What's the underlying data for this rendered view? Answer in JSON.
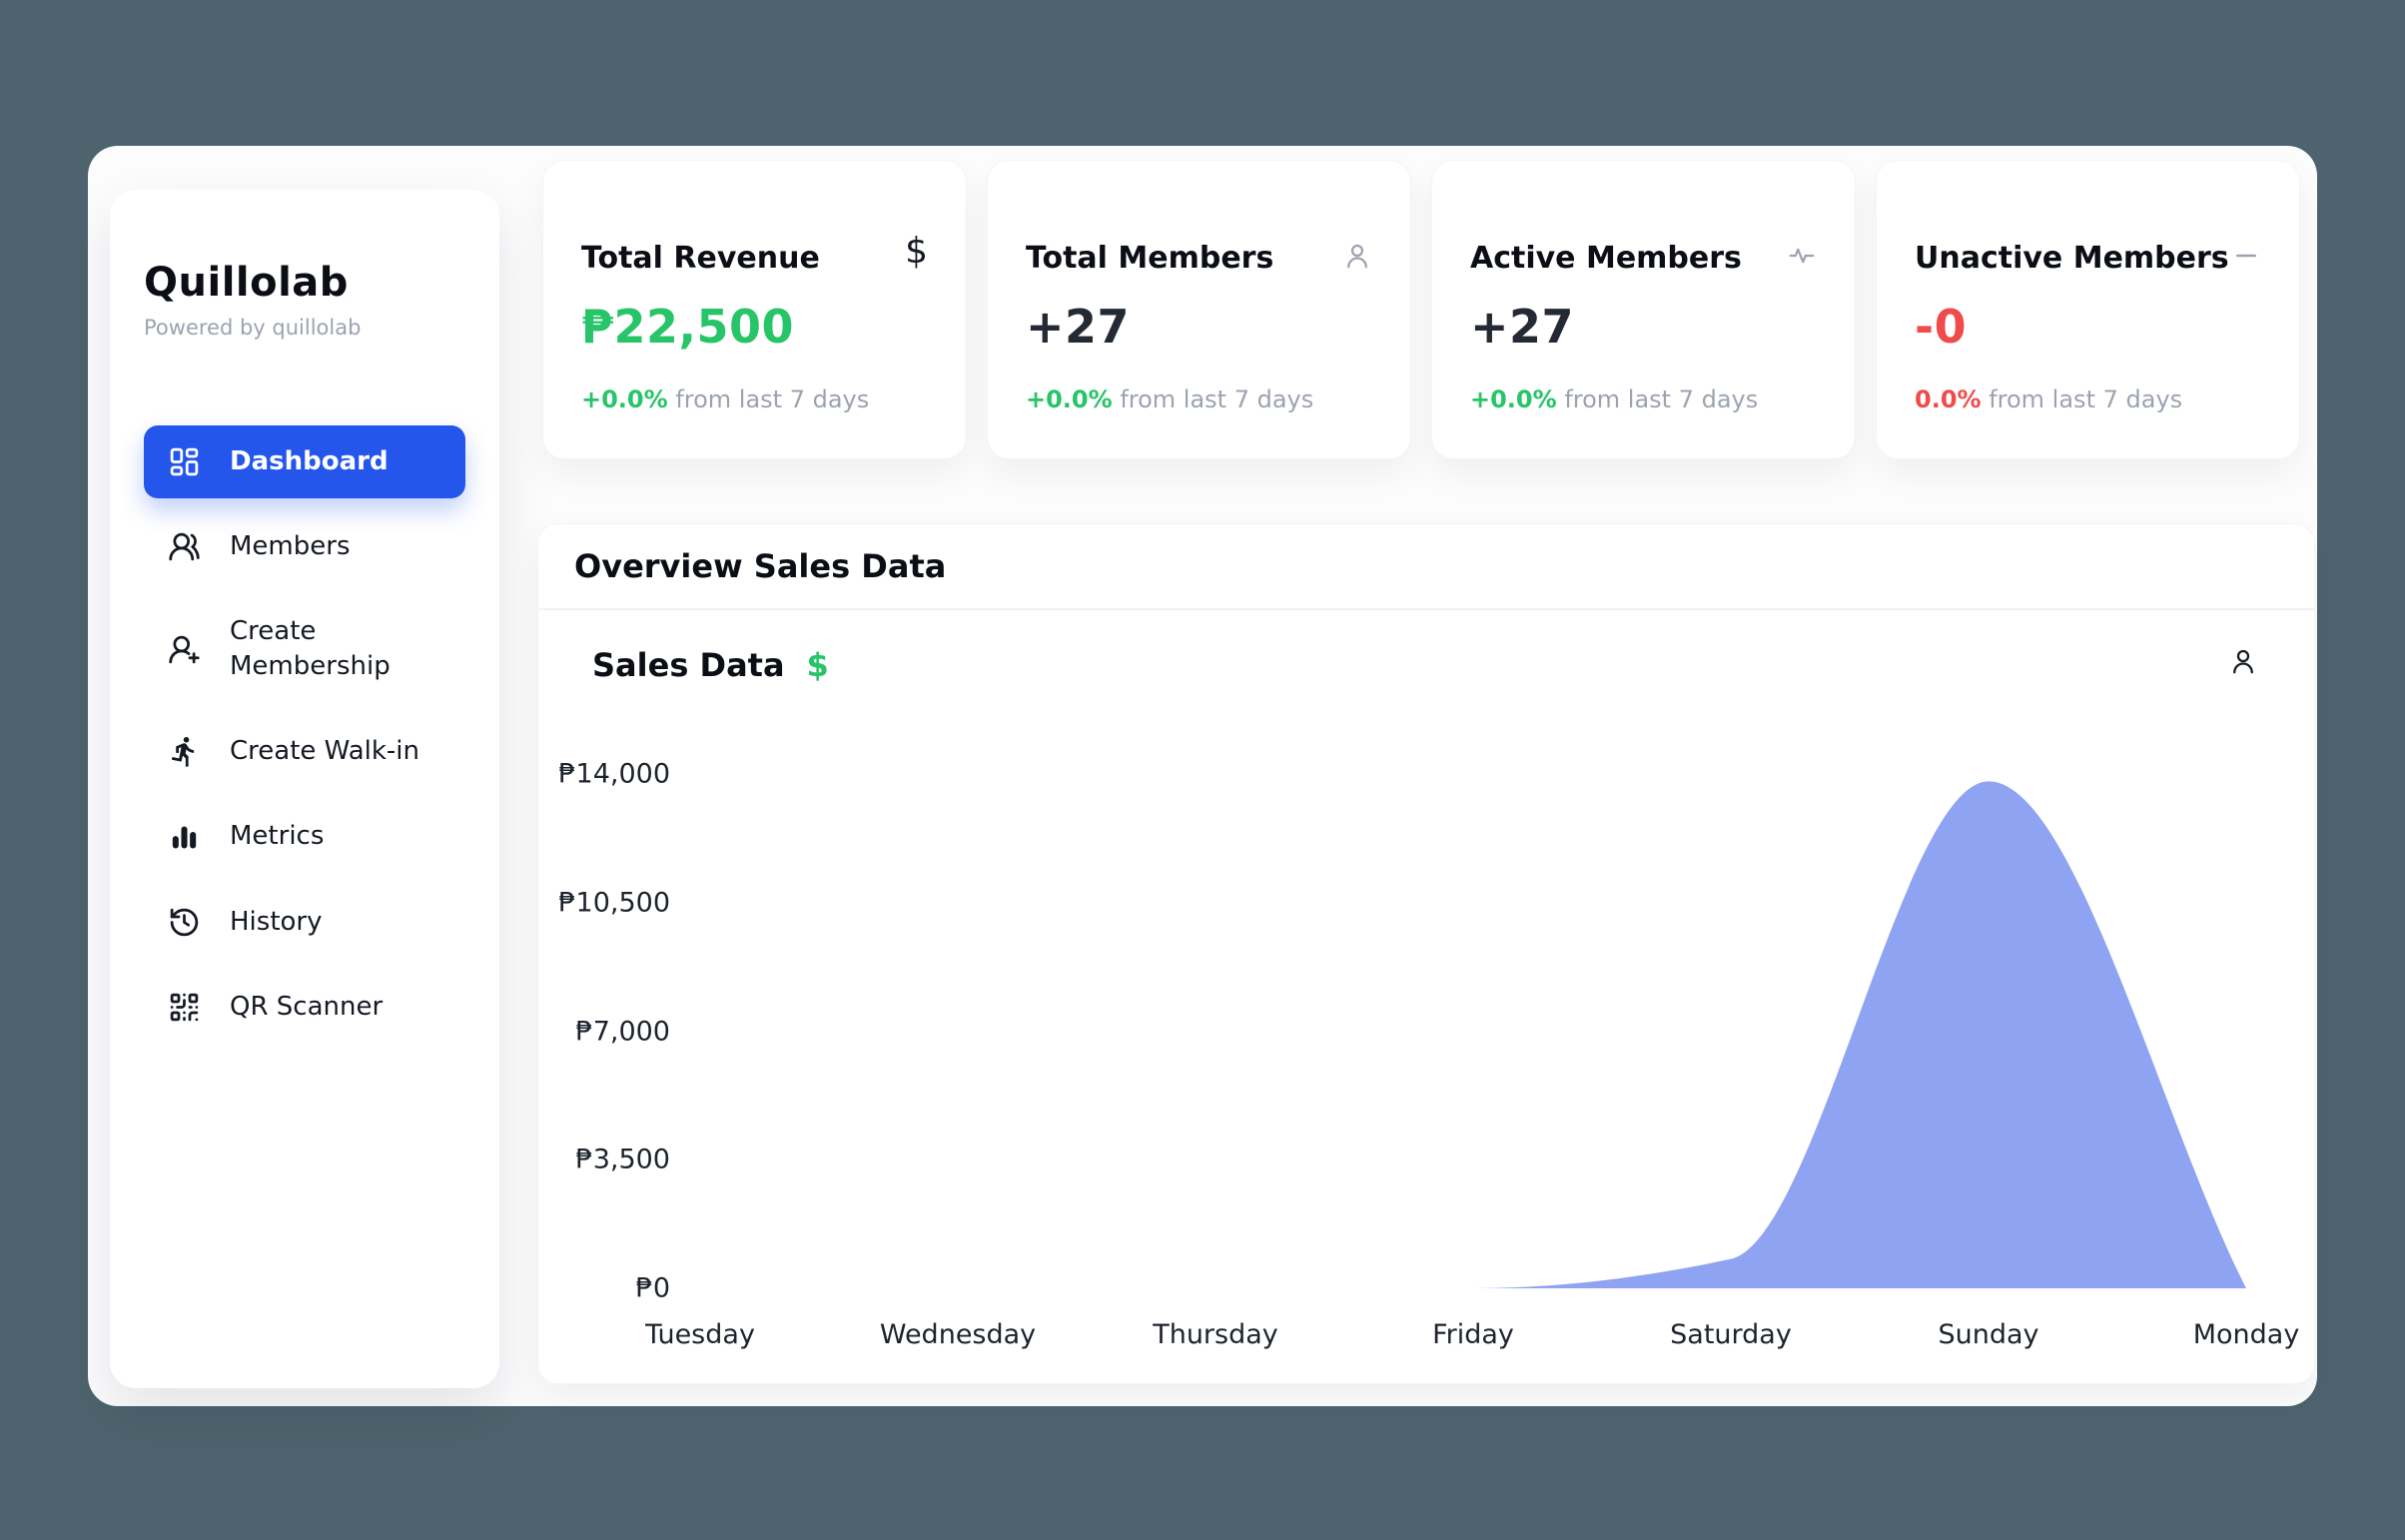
{
  "theme": {
    "background": "#4D636D",
    "surface": "#FFFFFF",
    "accent_blue": "#2456EC",
    "green": "#27C468",
    "red": "#EF4B4B",
    "gray_text": "#9CA3AF",
    "dark_text": "#0B0E14",
    "area_blue": "#8EA3F1"
  },
  "sidebar": {
    "title": "Quillolab",
    "subtitle": "Powered by quillolab",
    "items": [
      {
        "label": "Dashboard",
        "icon": "dashboard-grid",
        "active": true
      },
      {
        "label": "Members",
        "icon": "members",
        "active": false
      },
      {
        "label": "Create Membership",
        "icon": "person-add",
        "active": false
      },
      {
        "label": "Create Walk-in",
        "icon": "walk-in-runner",
        "active": false
      },
      {
        "label": "Metrics",
        "icon": "bar-chart",
        "active": false
      },
      {
        "label": "History",
        "icon": "history-clock",
        "active": false
      },
      {
        "label": "QR Scanner",
        "icon": "qr-code",
        "active": false
      }
    ]
  },
  "stats": [
    {
      "title": "Total Revenue",
      "icon": "dollar",
      "icon_glyph": "$",
      "value": "₱22,500",
      "value_color": "#27C468",
      "delta": "+0.0%",
      "delta_color": "#27C468",
      "caption": "from last 7 days"
    },
    {
      "title": "Total Members",
      "icon": "person",
      "value": "+27",
      "value_color": "#232A33",
      "delta": "+0.0%",
      "delta_color": "#27C468",
      "caption": "from last 7 days"
    },
    {
      "title": "Active Members",
      "icon": "activity",
      "value": "+27",
      "value_color": "#232A33",
      "delta": "+0.0%",
      "delta_color": "#27C468",
      "caption": "from last 7 days"
    },
    {
      "title": "Unactive Members",
      "icon": "minus",
      "value": "-0",
      "value_color": "#EF4B4B",
      "delta": "0.0%",
      "delta_color": "#EF4B4B",
      "caption": "from last 7 days"
    }
  ],
  "overview": {
    "title": "Overview Sales Data"
  },
  "chart_data": {
    "type": "area",
    "title": "Sales Data",
    "currency_icon": "$",
    "categories": [
      "Tuesday",
      "Wednesday",
      "Thursday",
      "Friday",
      "Saturday",
      "Sunday",
      "Monday"
    ],
    "values": [
      0,
      0,
      0,
      0,
      800,
      13800,
      0
    ],
    "y_ticks": [
      {
        "label": "₱14,000",
        "value": 14000
      },
      {
        "label": "₱10,500",
        "value": 10500
      },
      {
        "label": "₱7,000",
        "value": 7000
      },
      {
        "label": "₱3,500",
        "value": 3500
      },
      {
        "label": "₱0",
        "value": 0
      }
    ],
    "ylim": [
      0,
      14000
    ],
    "xlabel": "",
    "ylabel": "",
    "grid": false,
    "legend": false,
    "area_color": "#8EA3F1"
  }
}
